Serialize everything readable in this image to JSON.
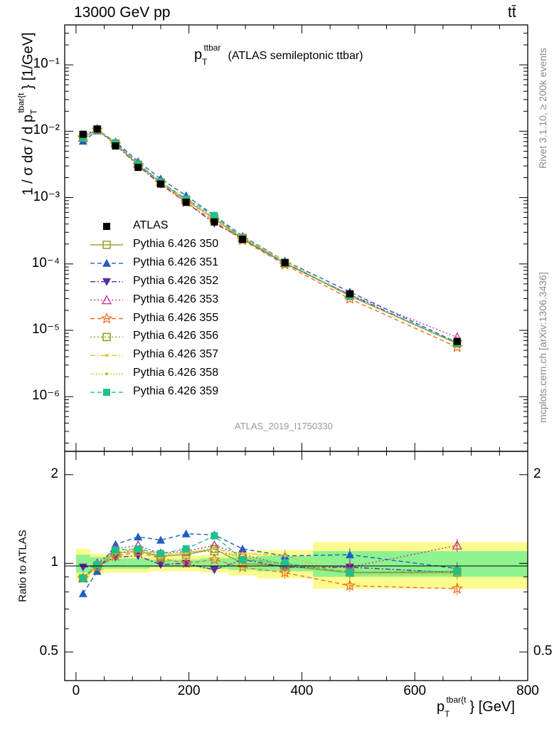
{
  "header": {
    "energy_label": "13000 GeV pp",
    "process_label": "tt̄",
    "plot_title_main": "p",
    "plot_title_sup": "ttbar",
    "plot_title_sub": "T",
    "plot_title_rest": "(ATLAS semileptonic ttbar)",
    "rivet_label": "Rivet 3.1.10, ≥ 200k events",
    "mcplots_label": "mcplots.cern.ch [arXiv:1306.3436]",
    "analysis_label": "ATLAS_2019_I1750330"
  },
  "axes": {
    "ylabel_main": "1 / σ dσ / d p",
    "ylabel_sub": "T",
    "ylabel_sup": "tbar{t",
    "ylabel_unit": "} [1/GeV]",
    "ylabel_ratio": "Ratio to ATLAS",
    "xlabel_main": "p",
    "xlabel_sub": "T",
    "xlabel_sup": "tbar{t",
    "xlabel_unit": "} [GeV]",
    "main_y_ticks": [
      "10⁻⁶",
      "10⁻⁵",
      "10⁻⁴",
      "10⁻³",
      "10⁻²",
      "10⁻¹"
    ],
    "ratio_y_ticks": [
      "0.5",
      "1",
      "2"
    ],
    "x_ticks": [
      "0",
      "200",
      "400",
      "600",
      "800"
    ]
  },
  "colors": {
    "data": "#000000",
    "band_inner": "#8ef28e",
    "band_outer": "#fbfb8e"
  },
  "chart_data": {
    "type": "line",
    "log_y": true,
    "xlim": [
      -20,
      800
    ],
    "ylim": [
      1.5e-07,
      0.4
    ],
    "ratio_ylim": [
      0.4,
      2.4
    ],
    "x": [
      12.5,
      37.5,
      70,
      110,
      150,
      195,
      245,
      295,
      370,
      485,
      675
    ],
    "bin_edges": [
      0,
      25,
      50,
      90,
      130,
      170,
      220,
      270,
      320,
      420,
      550,
      800
    ],
    "data": {
      "name": "ATLAS",
      "values": [
        0.009,
        0.0108,
        0.006,
        0.00285,
        0.0016,
        0.00085,
        0.00043,
        0.000235,
        0.000105,
        3.55e-05,
        6.8e-06
      ]
    },
    "band_inner_halfwidth": [
      0.07,
      0.05,
      0.04,
      0.04,
      0.03,
      0.03,
      0.04,
      0.05,
      0.06,
      0.1,
      0.1
    ],
    "band_outer_halfwidth": [
      0.12,
      0.08,
      0.07,
      0.07,
      0.06,
      0.06,
      0.07,
      0.09,
      0.11,
      0.18,
      0.18
    ],
    "series": [
      {
        "name": "Pythia 6.426 350",
        "color": "#9a9a2e",
        "dash": "",
        "marker": "square-open",
        "ratio": [
          0.89,
          0.98,
          1.08,
          1.1,
          1.06,
          1.07,
          1.12,
          1.0,
          0.98,
          0.93,
          0.93
        ]
      },
      {
        "name": "Pythia 6.426 351",
        "color": "#1f5fbf",
        "dash": "6,4",
        "marker": "triangle-up",
        "ratio": [
          0.79,
          0.94,
          1.16,
          1.23,
          1.2,
          1.26,
          1.25,
          1.12,
          1.06,
          1.07,
          0.96
        ]
      },
      {
        "name": "Pythia 6.426 352",
        "color": "#5b2aa8",
        "dash": "7,3,2,3",
        "marker": "triangle-down",
        "ratio": [
          0.97,
          0.98,
          1.05,
          1.06,
          0.99,
          1.0,
          0.95,
          1.03,
          0.97,
          0.97,
          0.93
        ]
      },
      {
        "name": "Pythia 6.426 353",
        "color": "#c02c9a",
        "dash": "2,3",
        "marker": "triangle-open",
        "ratio": [
          0.89,
          1.0,
          1.12,
          1.15,
          1.08,
          1.1,
          1.15,
          1.07,
          0.99,
          0.97,
          1.15
        ]
      },
      {
        "name": "Pythia 6.426 355",
        "color": "#f07020",
        "dash": "6,4",
        "marker": "star-open",
        "ratio": [
          0.89,
          0.97,
          1.06,
          1.09,
          1.04,
          1.0,
          1.03,
          0.97,
          0.93,
          0.84,
          0.82
        ]
      },
      {
        "name": "Pythia 6.426 356",
        "color": "#8a9a1a",
        "dash": "2,3",
        "marker": "square-open",
        "ratio": [
          0.89,
          0.98,
          1.09,
          1.1,
          1.05,
          1.09,
          1.1,
          1.05,
          0.98,
          0.93,
          0.94
        ]
      },
      {
        "name": "Pythia 6.426 357",
        "color": "#e8c02a",
        "dash": "7,3,2,3",
        "marker": "dot",
        "ratio": [
          0.88,
          0.98,
          1.1,
          1.11,
          1.07,
          1.09,
          1.12,
          1.08,
          1.06,
          0.92,
          0.92
        ]
      },
      {
        "name": "Pythia 6.426 358",
        "color": "#b8d030",
        "dash": "2,2",
        "marker": "dot",
        "ratio": [
          0.89,
          0.99,
          1.08,
          1.1,
          1.05,
          1.08,
          1.13,
          1.04,
          1.0,
          0.94,
          0.93
        ]
      },
      {
        "name": "Pythia 6.426 359",
        "color": "#20c08a",
        "dash": "6,4",
        "marker": "square",
        "ratio": [
          0.89,
          0.99,
          1.11,
          1.12,
          1.08,
          1.12,
          1.24,
          1.03,
          1.0,
          0.93,
          0.94
        ]
      }
    ]
  }
}
